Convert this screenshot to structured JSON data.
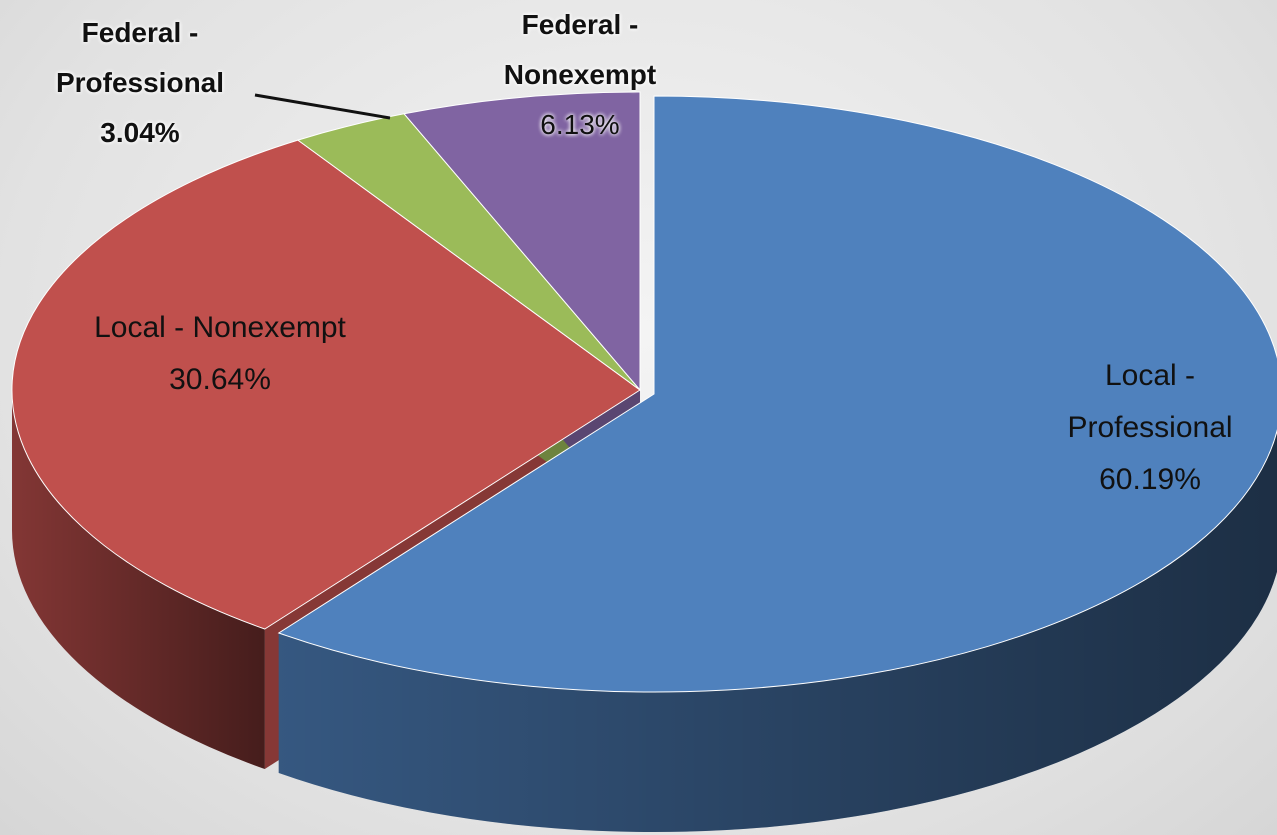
{
  "chart_data": {
    "type": "pie3d",
    "categories": [
      "Local - Professional",
      "Local - Nonexempt",
      "Federal - Professional",
      "Federal - Nonexempt"
    ],
    "values": [
      60.19,
      30.64,
      3.04,
      6.13
    ],
    "value_labels": [
      "60.19%",
      "30.64%",
      "3.04%",
      "6.13%"
    ],
    "colors": [
      "#4f81bd",
      "#c0504d",
      "#9bbb59",
      "#8064a2"
    ]
  }
}
